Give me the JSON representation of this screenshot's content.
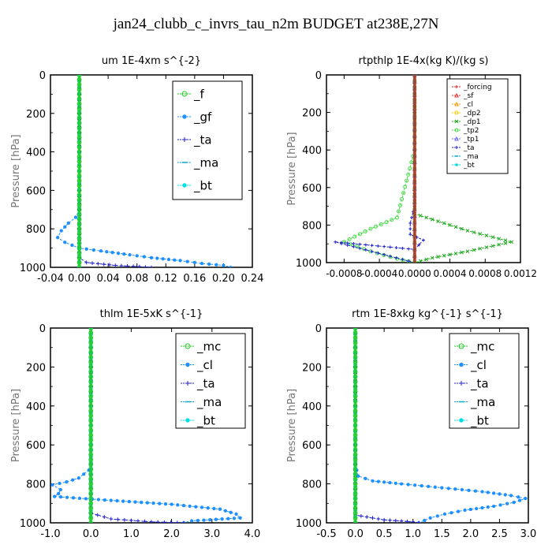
{
  "title": "jan24_clubb_c_invrs_tau_n2m  BUDGET at238E,27N",
  "chart_data": [
    {
      "type": "line",
      "title": "um   1E-4xm s^{-2}",
      "ylabel": "Pressure [hPa]",
      "xlim": [
        -0.04,
        0.24
      ],
      "ylim": [
        1000,
        0
      ],
      "xticks": [
        "-0.04",
        "0.00",
        "0.04",
        "0.08",
        "0.12",
        "0.16",
        "0.20",
        "0.24"
      ],
      "yticks": [
        "0",
        "200",
        "400",
        "600",
        "800",
        "1000"
      ],
      "legend": "top-right",
      "series": [
        {
          "name": "_f",
          "color": "#22cc22",
          "marker": "circle",
          "x": [
            0,
            0,
            0,
            0,
            0,
            0,
            0,
            0,
            0,
            0,
            0,
            0,
            0,
            0,
            0,
            0,
            0,
            0,
            0,
            0,
            0
          ],
          "y": [
            0,
            50,
            100,
            150,
            200,
            250,
            300,
            350,
            400,
            450,
            500,
            550,
            600,
            650,
            700,
            750,
            800,
            850,
            900,
            950,
            1000
          ]
        },
        {
          "name": "_gf",
          "color": "#1e90ff",
          "marker": "dot",
          "x": [
            0,
            0,
            0,
            0,
            0,
            -0.005,
            -0.015,
            -0.02,
            -0.025,
            -0.03,
            -0.02,
            0.0,
            0.03,
            0.07,
            0.1,
            0.14,
            0.17,
            0.2,
            0.21
          ],
          "y": [
            0,
            200,
            400,
            600,
            700,
            740,
            770,
            790,
            810,
            845,
            870,
            900,
            915,
            935,
            950,
            965,
            980,
            990,
            1000
          ]
        },
        {
          "name": "_ta",
          "color": "#2020cc",
          "marker": "plus",
          "x": [
            0,
            0,
            0,
            0.0,
            0.01,
            0.05,
            0.1
          ],
          "y": [
            0,
            400,
            800,
            950,
            975,
            990,
            1000
          ]
        },
        {
          "name": "_ma",
          "color": "#00aacc",
          "marker": "dash",
          "x": [
            0,
            0,
            0,
            0,
            0
          ],
          "y": [
            0,
            250,
            500,
            750,
            1000
          ]
        },
        {
          "name": "_bt",
          "color": "#00e0e0",
          "marker": "diamond",
          "x": [
            0,
            0,
            0,
            0,
            0
          ],
          "y": [
            0,
            250,
            500,
            750,
            1000
          ]
        }
      ]
    },
    {
      "type": "line",
      "title": "rtpthlp   1E-4x(kg K)/(kg s)",
      "ylabel": "Pressure [hPa]",
      "xlim": [
        -0.001,
        0.0012
      ],
      "ylim": [
        1000,
        0
      ],
      "xticks": [
        "-0.0008",
        "-0.0004",
        "0.0000",
        "0.0004",
        "0.0008",
        "0.0012"
      ],
      "yticks": [
        "0",
        "200",
        "400",
        "600",
        "800",
        "1000"
      ],
      "legend": "top-right",
      "series": [
        {
          "name": "_forcing",
          "color": "#dd2222",
          "marker": "plus",
          "x": [
            0,
            0,
            0,
            0,
            0
          ],
          "y": [
            0,
            250,
            500,
            750,
            1000
          ]
        },
        {
          "name": "_sf",
          "color": "#ee3333",
          "marker": "triangle",
          "x": [
            0,
            0,
            0,
            0,
            0
          ],
          "y": [
            0,
            250,
            500,
            750,
            1000
          ]
        },
        {
          "name": "_cl",
          "color": "#ff9900",
          "marker": "triangle",
          "x": [
            0,
            0,
            0,
            0,
            0
          ],
          "y": [
            0,
            250,
            500,
            750,
            1000
          ]
        },
        {
          "name": "_dp2",
          "color": "#ffcc00",
          "marker": "circle",
          "x": [
            0,
            0,
            0,
            0,
            0
          ],
          "y": [
            0,
            250,
            500,
            750,
            1000
          ]
        },
        {
          "name": "_dp1",
          "color": "#22aa22",
          "marker": "cross",
          "x": [
            0,
            0,
            0,
            0.0002,
            0.0006,
            0.0011,
            0.0006,
            0.0002,
            0.0
          ],
          "y": [
            0,
            400,
            740,
            770,
            830,
            890,
            940,
            975,
            1000
          ]
        },
        {
          "name": "_tp2",
          "color": "#44dd44",
          "marker": "circle",
          "x": [
            0,
            0,
            -0.0002,
            -0.0005,
            -0.0008,
            -0.0005,
            -0.0002,
            0.0
          ],
          "y": [
            0,
            400,
            760,
            820,
            890,
            940,
            980,
            1000
          ]
        },
        {
          "name": "_tp1",
          "color": "#6666ff",
          "marker": "triangle",
          "x": [
            0,
            0,
            0,
            0,
            0
          ],
          "y": [
            0,
            250,
            500,
            750,
            1000
          ]
        },
        {
          "name": "_ta",
          "color": "#2020cc",
          "marker": "plus",
          "x": [
            0,
            0,
            -5e-05,
            -5e-05,
            0.0001,
            0.0,
            -0.0009,
            0.0
          ],
          "y": [
            0,
            700,
            790,
            850,
            880,
            930,
            890,
            1000
          ]
        },
        {
          "name": "_ma",
          "color": "#00aacc",
          "marker": "dash",
          "x": [
            0,
            0,
            0,
            0,
            0
          ],
          "y": [
            0,
            250,
            500,
            750,
            1000
          ]
        },
        {
          "name": "_bt",
          "color": "#00e0e0",
          "marker": "diamond",
          "x": [
            0,
            0,
            0,
            0,
            0
          ],
          "y": [
            0,
            250,
            500,
            750,
            1000
          ]
        }
      ]
    },
    {
      "type": "line",
      "title": "thlm   1E-5xK  s^{-1}",
      "ylabel": "Pressure [hPa]",
      "xlim": [
        -1.0,
        4.0
      ],
      "ylim": [
        1000,
        0
      ],
      "xticks": [
        "-1.0",
        "0.0",
        "1.0",
        "2.0",
        "3.0",
        "4.0"
      ],
      "yticks": [
        "0",
        "200",
        "400",
        "600",
        "800",
        "1000"
      ],
      "legend": "top-right",
      "series": [
        {
          "name": "_mc",
          "color": "#22cc22",
          "marker": "circle",
          "x": [
            0,
            0,
            0,
            0,
            0,
            0,
            0,
            0,
            0,
            0,
            0,
            0,
            0,
            0,
            0,
            0,
            0,
            0,
            0,
            0,
            0
          ],
          "y": [
            0,
            50,
            100,
            150,
            200,
            250,
            300,
            350,
            400,
            450,
            500,
            550,
            600,
            650,
            700,
            750,
            800,
            850,
            900,
            950,
            1000
          ]
        },
        {
          "name": "_cl",
          "color": "#1e90ff",
          "marker": "dot",
          "x": [
            0,
            0,
            0,
            -0.05,
            -0.3,
            -0.6,
            -0.95,
            -0.75,
            -0.8,
            -0.9,
            0.5,
            2.0,
            3.2,
            3.6,
            3.7,
            2.5,
            2.3
          ],
          "y": [
            0,
            300,
            700,
            730,
            770,
            790,
            805,
            830,
            850,
            865,
            885,
            905,
            930,
            955,
            975,
            990,
            1000
          ]
        },
        {
          "name": "_ta",
          "color": "#2020cc",
          "marker": "plus",
          "x": [
            0,
            0,
            0.0,
            0.5,
            1.5,
            2.3
          ],
          "y": [
            0,
            500,
            950,
            980,
            995,
            1000
          ]
        },
        {
          "name": "_ma",
          "color": "#00aacc",
          "marker": "dash",
          "x": [
            0,
            0,
            0,
            0,
            0
          ],
          "y": [
            0,
            250,
            500,
            750,
            1000
          ]
        },
        {
          "name": "_bt",
          "color": "#00e0e0",
          "marker": "diamond",
          "x": [
            0,
            0,
            0,
            0,
            0
          ],
          "y": [
            0,
            250,
            500,
            750,
            1000
          ]
        }
      ]
    },
    {
      "type": "line",
      "title": "rtm   1E-8xkg  kg^{-1} s^{-1}",
      "ylabel": "Pressure [hPa]",
      "xlim": [
        -0.5,
        3.0
      ],
      "ylim": [
        1000,
        0
      ],
      "xticks": [
        "-0.5",
        "0.0",
        "0.5",
        "1.0",
        "1.5",
        "2.0",
        "2.5",
        "3.0"
      ],
      "yticks": [
        "0",
        "200",
        "400",
        "600",
        "800",
        "1000"
      ],
      "legend": "top-right",
      "series": [
        {
          "name": "_mc",
          "color": "#22cc22",
          "marker": "circle",
          "x": [
            0,
            0,
            0,
            0,
            0,
            0,
            0,
            0,
            0,
            0,
            0,
            0,
            0,
            0,
            0,
            0,
            0,
            0,
            0,
            0,
            0
          ],
          "y": [
            0,
            50,
            100,
            150,
            200,
            250,
            300,
            350,
            400,
            450,
            500,
            550,
            600,
            650,
            700,
            750,
            800,
            850,
            900,
            950,
            1000
          ]
        },
        {
          "name": "_cl",
          "color": "#1e90ff",
          "marker": "dot",
          "x": [
            0,
            0,
            0,
            0.05,
            0.3,
            0.8,
            1.5,
            2.2,
            2.7,
            2.95,
            2.75,
            2.4,
            1.9,
            1.55,
            1.3,
            1.1
          ],
          "y": [
            0,
            400,
            700,
            760,
            785,
            800,
            820,
            840,
            860,
            875,
            895,
            915,
            935,
            955,
            975,
            1000
          ]
        },
        {
          "name": "_ta",
          "color": "#2020cc",
          "marker": "plus",
          "x": [
            0,
            0,
            0.0,
            0.5,
            1.0,
            1.1
          ],
          "y": [
            0,
            500,
            960,
            985,
            995,
            1000
          ]
        },
        {
          "name": "_ma",
          "color": "#00aacc",
          "marker": "dash",
          "x": [
            0,
            0,
            0,
            0,
            0
          ],
          "y": [
            0,
            250,
            500,
            750,
            1000
          ]
        },
        {
          "name": "_bt",
          "color": "#00e0e0",
          "marker": "diamond",
          "x": [
            0,
            0,
            0,
            0,
            0
          ],
          "y": [
            0,
            250,
            500,
            750,
            1000
          ]
        }
      ]
    }
  ]
}
